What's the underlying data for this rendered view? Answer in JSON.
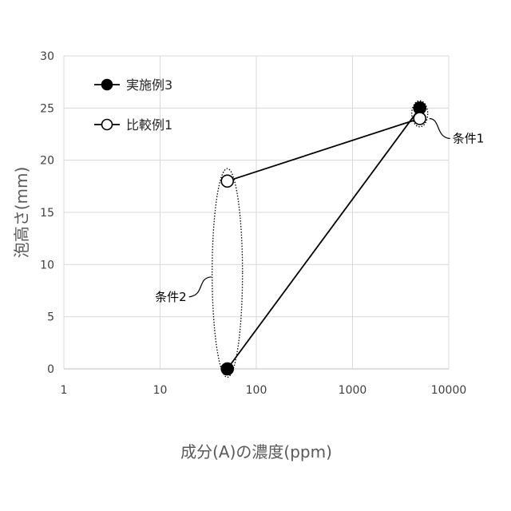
{
  "chart_data": {
    "type": "scatter",
    "xscale": "log",
    "xlim": [
      1,
      10000
    ],
    "ylim": [
      0,
      30
    ],
    "xticks": [
      1,
      10,
      100,
      1000,
      10000
    ],
    "xtick_labels": [
      "1",
      "10",
      "100",
      "1000",
      "10000"
    ],
    "yticks": [
      0,
      5,
      10,
      15,
      20,
      25,
      30
    ],
    "ytick_labels": [
      "0",
      "5",
      "10",
      "15",
      "20",
      "25",
      "30"
    ],
    "xlabel": "成分(A)の濃度(ppm)",
    "ylabel": "泡高さ(mm)",
    "grid": true,
    "legend_position": "top-left",
    "series": [
      {
        "name": "実施例3",
        "marker": "filled-circle",
        "color": "#000000",
        "points": [
          {
            "x": 50,
            "y": 0
          },
          {
            "x": 5000,
            "y": 25
          }
        ]
      },
      {
        "name": "比較例1",
        "marker": "open-circle",
        "color": "#000000",
        "points": [
          {
            "x": 50,
            "y": 18
          },
          {
            "x": 5000,
            "y": 24
          }
        ]
      }
    ],
    "annotations": [
      {
        "label": "条件1",
        "x": 5000,
        "y_range": [
          23.2,
          25.7
        ]
      },
      {
        "label": "条件2",
        "x": 50,
        "y_range": [
          -0.8,
          19.2
        ]
      }
    ]
  }
}
